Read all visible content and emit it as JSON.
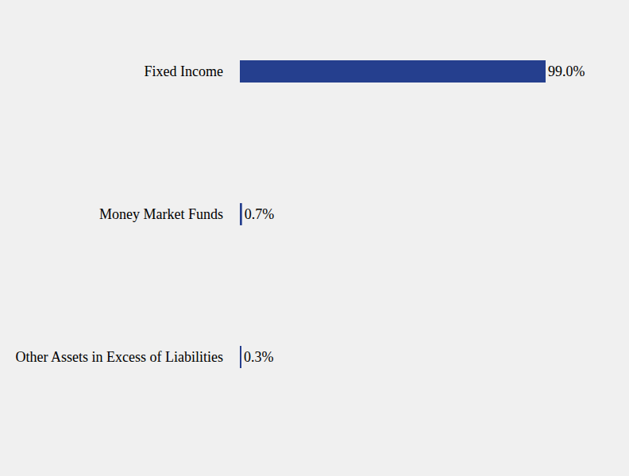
{
  "chart_data": {
    "type": "bar",
    "orientation": "horizontal",
    "categories": [
      "Fixed Income",
      "Money Market Funds",
      "Other Assets in Excess of Liabilities"
    ],
    "values": [
      99.0,
      0.7,
      0.3
    ],
    "value_labels": [
      "99.0%",
      "0.7%",
      "0.3%"
    ],
    "data_labels": true,
    "color": "#253f8e",
    "xlim": [
      0,
      99
    ],
    "tick_labels": "y",
    "grid": false
  }
}
